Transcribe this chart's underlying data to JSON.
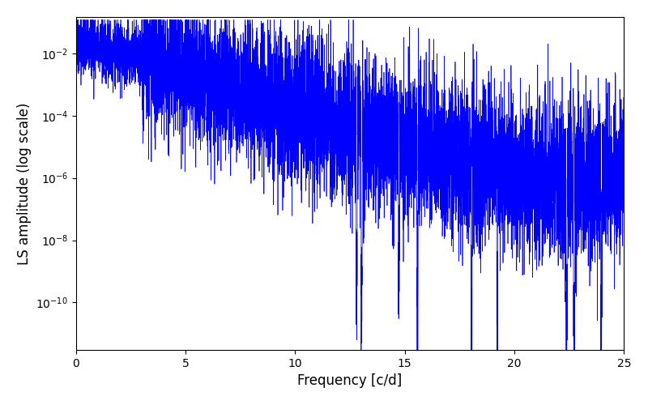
{
  "xlabel": "Frequency [c/d]",
  "ylabel": "LS amplitude (log scale)",
  "line_color": "#0000ff",
  "xlim": [
    0,
    25
  ],
  "ylim_low": 3e-12,
  "ylim_high": 0.15,
  "figsize": [
    8.0,
    5.0
  ],
  "dpi": 100,
  "background_color": "#ffffff",
  "seed": 42,
  "n_points": 8000,
  "freq_max": 25.0
}
